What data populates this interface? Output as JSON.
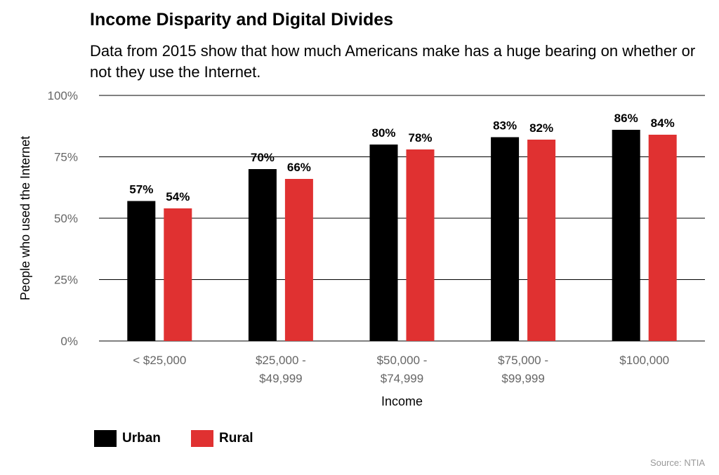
{
  "chart_data": {
    "type": "bar",
    "title": "Income Disparity and Digital Divides",
    "subtitle": "Data from 2015 show that how much Americans make has a huge bearing on whether or not they use the Internet.",
    "xlabel": "Income",
    "ylabel": "People who used the Internet",
    "categories": [
      [
        "< $25,000"
      ],
      [
        "$25,000 -",
        "$49,999"
      ],
      [
        "$50,000 -",
        "$74,999"
      ],
      [
        "$75,000 -",
        "$99,999"
      ],
      [
        "$100,000"
      ]
    ],
    "series": [
      {
        "name": "Urban",
        "color": "#000000",
        "values": [
          57,
          70,
          80,
          83,
          86
        ],
        "labels": [
          "57%",
          "70%",
          "80%",
          "83%",
          "86%"
        ]
      },
      {
        "name": "Rural",
        "color": "#e03131",
        "values": [
          54,
          66,
          78,
          82,
          84
        ],
        "labels": [
          "54%",
          "66%",
          "78%",
          "82%",
          "84%"
        ]
      }
    ],
    "yticks": [
      0,
      25,
      50,
      75,
      100
    ],
    "ytick_labels": [
      "0%",
      "25%",
      "50%",
      "75%",
      "100%"
    ],
    "ylim": [
      0,
      100
    ],
    "grid": true,
    "legend_position": "bottom-left",
    "source": "Source: NTIA"
  }
}
